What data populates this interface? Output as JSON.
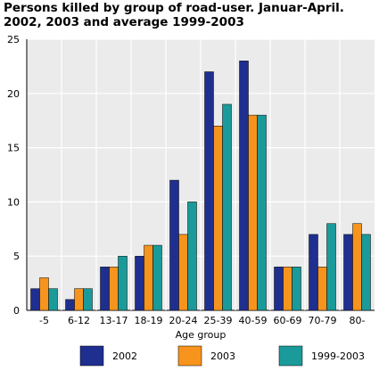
{
  "chart_data": {
    "type": "bar",
    "title": "Persons killed by group of road-user. Januar-April. 2002, 2003 and average 1999-2003",
    "xlabel": "Age group",
    "ylabel": "",
    "ylim": [
      0,
      25
    ],
    "yticks": [
      0,
      5,
      10,
      15,
      20,
      25
    ],
    "grid": true,
    "legend_position": "bottom",
    "categories": [
      "-5",
      "6-12",
      "13-17",
      "18-19",
      "20-24",
      "25-39",
      "40-59",
      "60-69",
      "70-79",
      "80-"
    ],
    "series": [
      {
        "name": "2002",
        "color": "#1f2f8f",
        "values": [
          2,
          1,
          4,
          5,
          12,
          22,
          23,
          4,
          7,
          7
        ]
      },
      {
        "name": "2003",
        "color": "#f7941d",
        "values": [
          3,
          2,
          4,
          6,
          7,
          17,
          18,
          4,
          4,
          8
        ]
      },
      {
        "name": "1999-2003",
        "color": "#1b9a9a",
        "values": [
          2,
          2,
          5,
          6,
          10,
          19,
          18,
          4,
          8,
          7
        ]
      }
    ]
  }
}
